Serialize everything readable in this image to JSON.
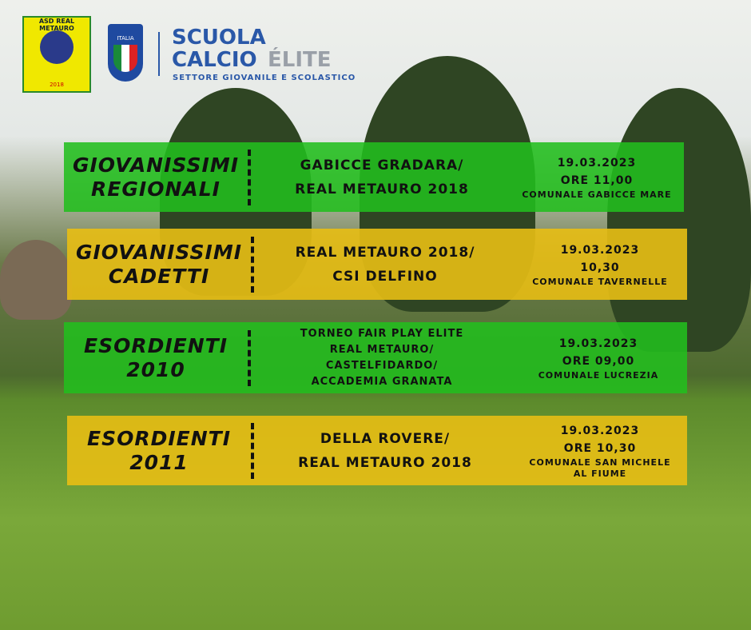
{
  "logos": {
    "club_name": "ASD REAL METAURO",
    "club_year": "2018",
    "federation": "ITALIA",
    "school_line1": "SCUOLA",
    "school_line2": "CALCIO",
    "school_tag": "ÉLITE",
    "school_subtitle": "SETTORE GIOVANILE E SCOLASTICO"
  },
  "matches": [
    {
      "category": [
        "GIOVANISSIMI",
        "REGIONALI"
      ],
      "match": [
        "GABICCE GRADARA/",
        "REAL METAURO 2018"
      ],
      "info": [
        "19.03.2023",
        "ORE 11,00",
        "COMUNALE GABICCE MARE"
      ]
    },
    {
      "category": [
        "GIOVANISSIMI",
        "CADETTI"
      ],
      "match": [
        "REAL METAURO 2018/",
        "CSI DELFINO"
      ],
      "info": [
        "19.03.2023",
        "10,30",
        "COMUNALE TAVERNELLE"
      ]
    },
    {
      "category": [
        "ESORDIENTI",
        "2010"
      ],
      "match": [
        "TORNEO FAIR PLAY ELITE",
        "REAL METAURO/",
        "CASTELFIDARDO/",
        "ACCADEMIA GRANATA"
      ],
      "info": [
        "19.03.2023",
        "ORE 09,00",
        "COMUNALE LUCREZIA"
      ]
    },
    {
      "category": [
        "ESORDIENTI",
        "2011"
      ],
      "match": [
        "DELLA ROVERE/",
        "REAL METAURO 2018"
      ],
      "info": [
        "19.03.2023",
        "ORE 10,30",
        "COMUNALE SAN MICHELE",
        "AL FIUME"
      ]
    }
  ]
}
